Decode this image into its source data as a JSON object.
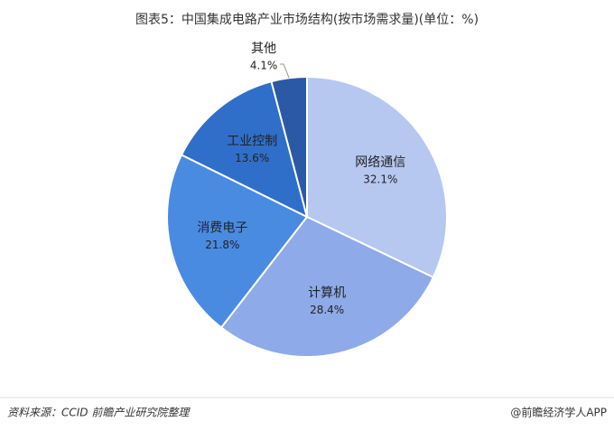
{
  "chart_data": {
    "type": "pie",
    "title": "图表5：中国集成电路产业市场结构(按市场需求量)(单位：%)",
    "categories": [
      "网络通信",
      "计算机",
      "消费电子",
      "工业控制",
      "其他"
    ],
    "values": [
      32.1,
      28.4,
      21.8,
      13.6,
      4.1
    ],
    "value_labels": [
      "32.1%",
      "28.4%",
      "21.8%",
      "13.6%",
      "4.1%"
    ],
    "colors": [
      "#b6c8f0",
      "#8eaae8",
      "#4a8be2",
      "#2f6fca",
      "#2b59a5"
    ]
  },
  "footer": {
    "source": "资料来源：CCID 前瞻产业研究院整理",
    "brand": "@前瞻经济学人APP"
  }
}
